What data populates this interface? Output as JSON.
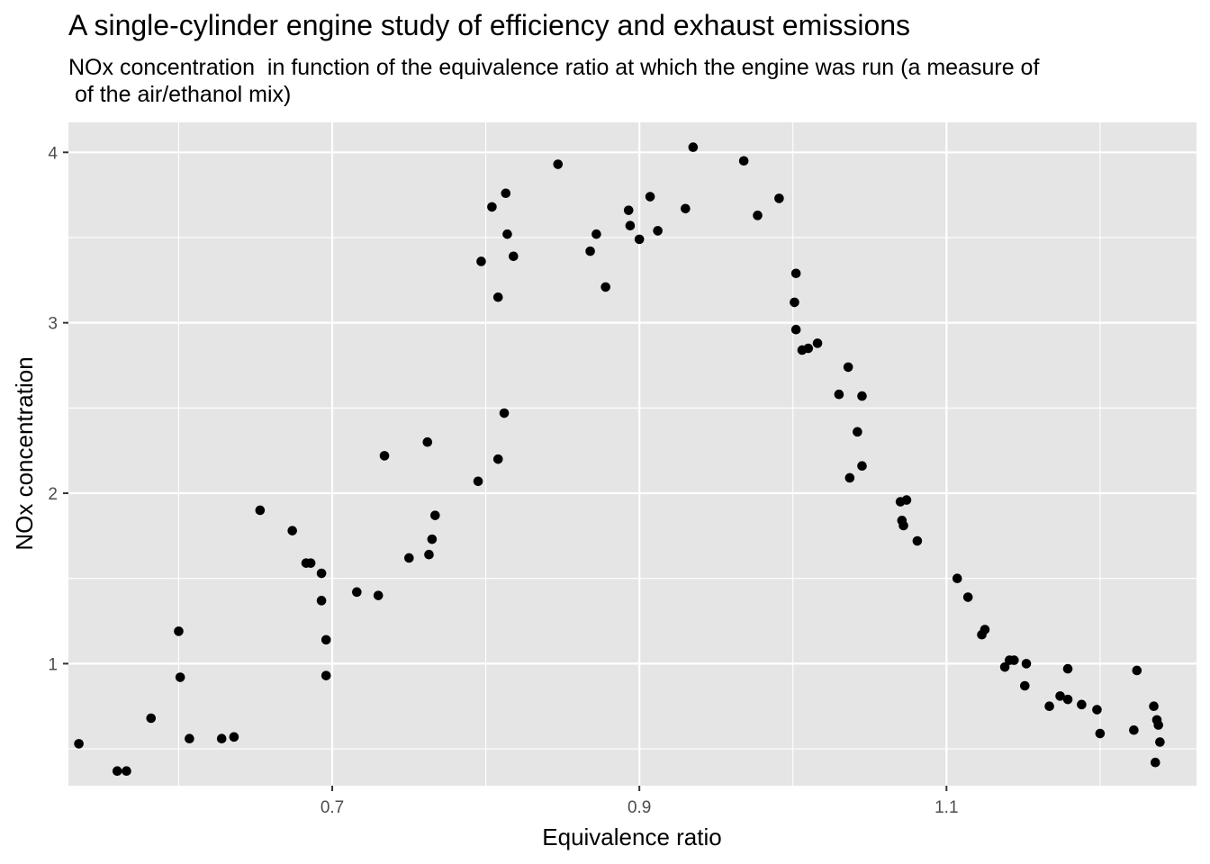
{
  "chart_data": {
    "type": "scatter",
    "title": "A single-cylinder engine study of efficiency and exhaust emissions",
    "subtitle": "NOx concentration  in function of the equivalence ratio at which the engine was run (a measure of\n of the air/ethanol mix)",
    "xlabel": "Equivalence ratio",
    "ylabel": "NOx concentration",
    "xlim": [
      0.5282,
      1.2628
    ],
    "ylim": [
      0.2839,
      4.1758
    ],
    "x_ticks": [
      0.7,
      0.9,
      1.1
    ],
    "x_minor_ticks": [
      0.6,
      0.8,
      1.0,
      1.2
    ],
    "y_ticks": [
      1,
      2,
      3,
      4
    ],
    "y_minor_ticks": [
      0.5,
      1.5,
      2.5,
      3.5
    ],
    "grid": true,
    "legend": "none",
    "colors": {
      "panel": "#e5e5e5",
      "grid": "#ffffff",
      "point": "#000000",
      "tick": "#4d4d4d"
    },
    "points": [
      {
        "x": 0.535,
        "y": 0.53
      },
      {
        "x": 0.56,
        "y": 0.37
      },
      {
        "x": 0.566,
        "y": 0.37
      },
      {
        "x": 0.582,
        "y": 0.68
      },
      {
        "x": 0.6,
        "y": 1.19
      },
      {
        "x": 0.601,
        "y": 0.92
      },
      {
        "x": 0.607,
        "y": 0.56
      },
      {
        "x": 0.628,
        "y": 0.56
      },
      {
        "x": 0.636,
        "y": 0.57
      },
      {
        "x": 0.653,
        "y": 1.9
      },
      {
        "x": 0.674,
        "y": 1.78
      },
      {
        "x": 0.683,
        "y": 1.59
      },
      {
        "x": 0.686,
        "y": 1.59
      },
      {
        "x": 0.693,
        "y": 1.53
      },
      {
        "x": 0.693,
        "y": 1.37
      },
      {
        "x": 0.696,
        "y": 1.14
      },
      {
        "x": 0.696,
        "y": 0.93
      },
      {
        "x": 0.716,
        "y": 1.42
      },
      {
        "x": 0.73,
        "y": 1.4
      },
      {
        "x": 0.734,
        "y": 2.22
      },
      {
        "x": 0.75,
        "y": 1.62
      },
      {
        "x": 0.762,
        "y": 2.3
      },
      {
        "x": 0.763,
        "y": 1.64
      },
      {
        "x": 0.765,
        "y": 1.73
      },
      {
        "x": 0.767,
        "y": 1.87
      },
      {
        "x": 0.795,
        "y": 2.07
      },
      {
        "x": 0.797,
        "y": 3.36
      },
      {
        "x": 0.804,
        "y": 3.68
      },
      {
        "x": 0.808,
        "y": 2.2
      },
      {
        "x": 0.808,
        "y": 3.15
      },
      {
        "x": 0.812,
        "y": 2.47
      },
      {
        "x": 0.813,
        "y": 3.76
      },
      {
        "x": 0.814,
        "y": 3.52
      },
      {
        "x": 0.818,
        "y": 3.39
      },
      {
        "x": 0.847,
        "y": 3.93
      },
      {
        "x": 0.868,
        "y": 3.42
      },
      {
        "x": 0.872,
        "y": 3.52
      },
      {
        "x": 0.878,
        "y": 3.21
      },
      {
        "x": 0.893,
        "y": 3.66
      },
      {
        "x": 0.894,
        "y": 3.57
      },
      {
        "x": 0.9,
        "y": 3.49
      },
      {
        "x": 0.907,
        "y": 3.74
      },
      {
        "x": 0.912,
        "y": 3.54
      },
      {
        "x": 0.93,
        "y": 3.67
      },
      {
        "x": 0.935,
        "y": 4.03
      },
      {
        "x": 0.968,
        "y": 3.95
      },
      {
        "x": 0.977,
        "y": 3.63
      },
      {
        "x": 0.991,
        "y": 3.73
      },
      {
        "x": 1.002,
        "y": 3.29
      },
      {
        "x": 1.001,
        "y": 3.12
      },
      {
        "x": 1.002,
        "y": 2.96
      },
      {
        "x": 1.006,
        "y": 2.84
      },
      {
        "x": 1.01,
        "y": 2.85
      },
      {
        "x": 1.016,
        "y": 2.88
      },
      {
        "x": 1.03,
        "y": 2.58
      },
      {
        "x": 1.036,
        "y": 2.74
      },
      {
        "x": 1.037,
        "y": 2.09
      },
      {
        "x": 1.042,
        "y": 2.36
      },
      {
        "x": 1.045,
        "y": 2.57
      },
      {
        "x": 1.045,
        "y": 2.16
      },
      {
        "x": 1.07,
        "y": 1.95
      },
      {
        "x": 1.071,
        "y": 1.84
      },
      {
        "x": 1.072,
        "y": 1.81
      },
      {
        "x": 1.074,
        "y": 1.96
      },
      {
        "x": 1.081,
        "y": 1.72
      },
      {
        "x": 1.107,
        "y": 1.5
      },
      {
        "x": 1.114,
        "y": 1.39
      },
      {
        "x": 1.123,
        "y": 1.17
      },
      {
        "x": 1.125,
        "y": 1.2
      },
      {
        "x": 1.138,
        "y": 0.98
      },
      {
        "x": 1.141,
        "y": 1.02
      },
      {
        "x": 1.144,
        "y": 1.02
      },
      {
        "x": 1.152,
        "y": 1.0
      },
      {
        "x": 1.151,
        "y": 0.87
      },
      {
        "x": 1.167,
        "y": 0.75
      },
      {
        "x": 1.174,
        "y": 0.81
      },
      {
        "x": 1.179,
        "y": 0.79
      },
      {
        "x": 1.179,
        "y": 0.97
      },
      {
        "x": 1.188,
        "y": 0.76
      },
      {
        "x": 1.198,
        "y": 0.73
      },
      {
        "x": 1.2,
        "y": 0.59
      },
      {
        "x": 1.222,
        "y": 0.61
      },
      {
        "x": 1.224,
        "y": 0.96
      },
      {
        "x": 1.235,
        "y": 0.75
      },
      {
        "x": 1.236,
        "y": 0.42
      },
      {
        "x": 1.237,
        "y": 0.67
      },
      {
        "x": 1.238,
        "y": 0.64
      },
      {
        "x": 1.239,
        "y": 0.54
      }
    ]
  }
}
